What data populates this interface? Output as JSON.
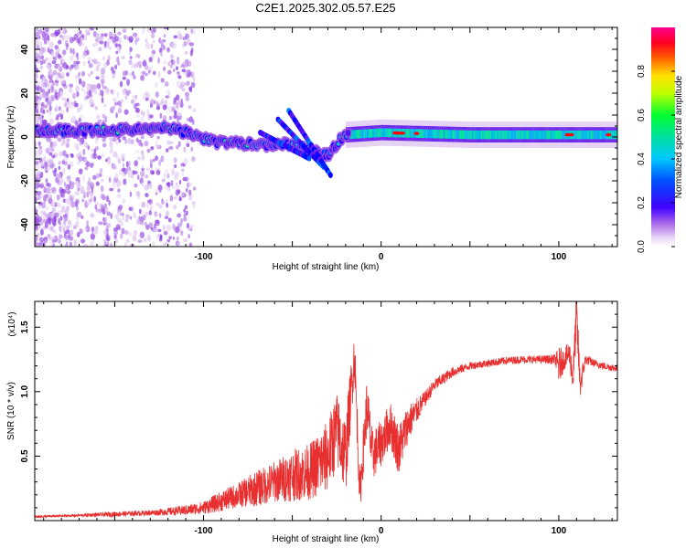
{
  "figure_title": "C2E1.2025.302.05.57.E25",
  "chart_data": [
    {
      "type": "heatmap",
      "title": "C2E1.2025.302.05.57.E25",
      "xlabel": "Height of straight line (km)",
      "ylabel": "Frequency (Hz)",
      "xlim": [
        -195,
        133
      ],
      "ylim": [
        -50,
        50
      ],
      "xticks": [
        -100,
        0,
        100
      ],
      "yticks": [
        -40,
        -20,
        0,
        20,
        40
      ],
      "colorbar": {
        "label": "Normalized spectral amplitude",
        "range": [
          0,
          1
        ],
        "ticks": [
          0.0,
          0.2,
          0.4,
          0.6,
          0.8
        ],
        "tick_labels": [
          "0.0",
          "0.2",
          "0.4",
          "0.6",
          "0.8"
        ],
        "colors": [
          "#ffffff",
          "#dcc2f0",
          "#9040e0",
          "#3a00ff",
          "#0000ff",
          "#00aaff",
          "#00e0c0",
          "#00ff40",
          "#a0ff00",
          "#ffff00",
          "#ff9900",
          "#ff0000",
          "#ff0080"
        ]
      },
      "band_center_hz": [
        {
          "x": -195,
          "f": 3
        },
        {
          "x": -150,
          "f": 3
        },
        {
          "x": -120,
          "f": 4
        },
        {
          "x": -110,
          "f": 2
        },
        {
          "x": -95,
          "f": -2
        },
        {
          "x": -80,
          "f": -3
        },
        {
          "x": -65,
          "f": -4
        },
        {
          "x": -55,
          "f": -3
        },
        {
          "x": -40,
          "f": -6
        },
        {
          "x": -30,
          "f": -8
        },
        {
          "x": -25,
          "f": -3
        },
        {
          "x": -20,
          "f": 1
        },
        {
          "x": 0,
          "f": 2
        },
        {
          "x": 50,
          "f": 1
        },
        {
          "x": 100,
          "f": 1
        },
        {
          "x": 133,
          "f": 1
        }
      ]
    },
    {
      "type": "line",
      "series_name": "SNR",
      "color": "#e83030",
      "xlabel": "Height of straight line (km)",
      "ylabel": "SNR (10 * v/v)",
      "scale_label": "(x10⁴)",
      "xlim": [
        -195,
        133
      ],
      "ylim": [
        0,
        1.7
      ],
      "xticks": [
        -100,
        0,
        100
      ],
      "yticks": [
        0.5,
        1.0,
        1.5
      ],
      "ytick_labels": [
        "0.5",
        "1.0",
        "1.5"
      ],
      "x": [
        -195,
        -170,
        -150,
        -130,
        -110,
        -100,
        -90,
        -80,
        -70,
        -60,
        -50,
        -40,
        -30,
        -25,
        -20,
        -15,
        -12,
        -8,
        -5,
        0,
        5,
        10,
        15,
        20,
        25,
        30,
        40,
        50,
        60,
        70,
        80,
        90,
        98,
        100,
        103,
        106,
        108,
        110,
        112,
        115,
        120,
        125,
        133
      ],
      "y": [
        0.03,
        0.04,
        0.05,
        0.06,
        0.08,
        0.1,
        0.15,
        0.2,
        0.25,
        0.3,
        0.35,
        0.38,
        0.5,
        0.7,
        0.5,
        1.3,
        0.2,
        0.9,
        0.5,
        0.6,
        0.75,
        0.55,
        0.75,
        0.85,
        0.95,
        1.05,
        1.15,
        1.2,
        1.22,
        1.24,
        1.25,
        1.25,
        1.25,
        1.2,
        1.25,
        1.3,
        1.1,
        1.6,
        1.05,
        1.25,
        1.22,
        1.2,
        1.18
      ],
      "jitter": [
        0.01,
        0.01,
        0.02,
        0.02,
        0.04,
        0.05,
        0.08,
        0.1,
        0.14,
        0.16,
        0.2,
        0.22,
        0.28,
        0.3,
        0.3,
        0.2,
        0.15,
        0.22,
        0.2,
        0.18,
        0.18,
        0.2,
        0.15,
        0.1,
        0.06,
        0.05,
        0.04,
        0.03,
        0.03,
        0.03,
        0.03,
        0.03,
        0.04,
        0.15,
        0.08,
        0.1,
        0.12,
        0.2,
        0.12,
        0.04,
        0.03,
        0.03,
        0.03
      ]
    }
  ]
}
